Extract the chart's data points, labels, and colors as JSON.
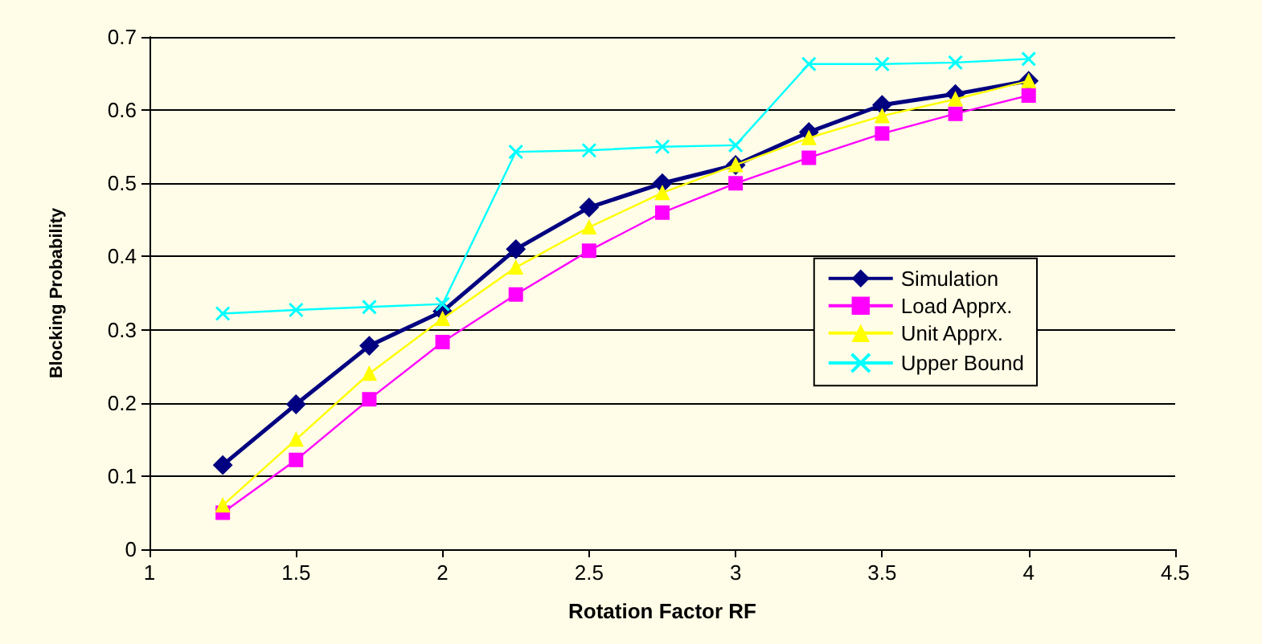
{
  "chart_data": {
    "type": "line",
    "xlabel": "Rotation Factor RF",
    "ylabel": "Blocking Probability",
    "x": [
      1.25,
      1.5,
      1.75,
      2,
      2.25,
      2.5,
      2.75,
      3,
      3.25,
      3.5,
      3.75,
      4
    ],
    "xlim": [
      1,
      4.5
    ],
    "xticks": [
      1,
      1.5,
      2,
      2.5,
      3,
      3.5,
      4,
      4.5
    ],
    "ylim": [
      0,
      0.7
    ],
    "yticks": [
      0,
      0.1,
      0.2,
      0.3,
      0.4,
      0.5,
      0.6,
      0.7
    ],
    "grid": "y",
    "legend": "right",
    "series": [
      {
        "name": "Simulation",
        "color": "#000080",
        "marker": "diamond",
        "values": [
          0.115,
          0.198,
          0.278,
          0.325,
          0.41,
          0.467,
          0.5,
          0.525,
          0.57,
          0.607,
          0.622,
          0.64
        ]
      },
      {
        "name": "Load Apprx.",
        "color": "#ff00ff",
        "marker": "square",
        "values": [
          0.05,
          0.122,
          0.205,
          0.283,
          0.348,
          0.408,
          0.46,
          0.5,
          0.535,
          0.568,
          0.595,
          0.62
        ]
      },
      {
        "name": "Unit Apprx.",
        "color": "#ffff00",
        "marker": "triangle",
        "values": [
          0.06,
          0.15,
          0.24,
          0.315,
          0.385,
          0.44,
          0.487,
          0.525,
          0.562,
          0.592,
          0.615,
          0.64
        ]
      },
      {
        "name": "Upper Bound",
        "color": "#00ffff",
        "marker": "cross",
        "values": [
          0.322,
          0.327,
          0.331,
          0.335,
          0.543,
          0.545,
          0.55,
          0.552,
          0.663,
          0.663,
          0.665,
          0.67
        ]
      }
    ]
  }
}
